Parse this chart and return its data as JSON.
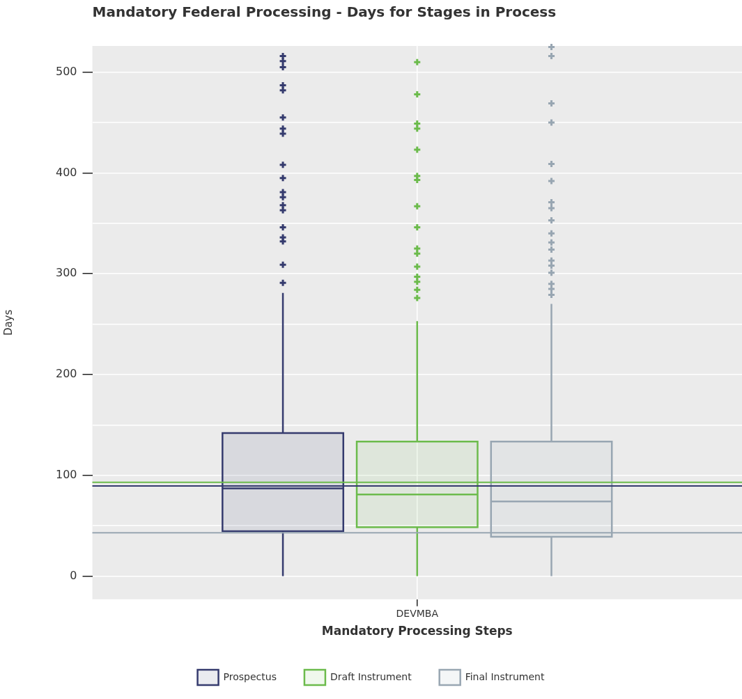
{
  "chart_data": {
    "type": "box",
    "title": "Mandatory Federal Processing - Days for Stages in Process",
    "xlabel": "Mandatory Processing Steps",
    "ylabel": "Days",
    "categories": [
      "DEVMBA"
    ],
    "ylim": [
      -23,
      526
    ],
    "yticks": [
      0,
      {
        "value": 50,
        "label": null
      },
      100,
      {
        "value": 150,
        "label": null
      },
      200,
      {
        "value": 250,
        "label": null
      },
      300,
      {
        "value": 350,
        "label": null
      },
      400,
      {
        "value": 450,
        "label": null
      },
      500
    ],
    "grid": true,
    "legend": "bottom",
    "marker": "cross",
    "series": [
      {
        "name": "Prospectus",
        "color": "#353b6e",
        "boxes": [
          {
            "low": 0,
            "q1": 44.5,
            "median": 87,
            "q3": 142,
            "high": 281,
            "outliers": [
              516,
              511,
              505,
              487,
              482,
              455,
              444,
              439,
              408,
              395,
              381,
              376,
              368,
              363,
              346,
              336,
              332,
              309,
              291
            ]
          }
        ]
      },
      {
        "name": "Draft Instrument",
        "color": "#6cbb4c",
        "boxes": [
          {
            "low": 0,
            "q1": 48.5,
            "median": 81,
            "q3": 133.5,
            "high": 253,
            "outliers": [
              510,
              478,
              449,
              444,
              423,
              397,
              393,
              367,
              346,
              325,
              320,
              307,
              297,
              292,
              284,
              276
            ]
          }
        ]
      },
      {
        "name": "Final Instrument",
        "color": "#98a6b2",
        "boxes": [
          {
            "low": 0,
            "q1": 39,
            "median": 74,
            "q3": 133.5,
            "high": 270,
            "outliers": [
              525,
              516,
              469,
              450,
              409,
              392,
              371,
              365,
              353,
              340,
              331,
              324,
              313,
              308,
              301,
              290,
              285,
              279
            ]
          }
        ]
      }
    ],
    "ref_lines": [
      {
        "axis": "y",
        "value": 89.5,
        "color": "#353b6e"
      },
      {
        "axis": "y",
        "value": 93,
        "color": "#6cbb4c"
      },
      {
        "axis": "y",
        "value": 43,
        "color": "#98a6b2"
      }
    ]
  }
}
